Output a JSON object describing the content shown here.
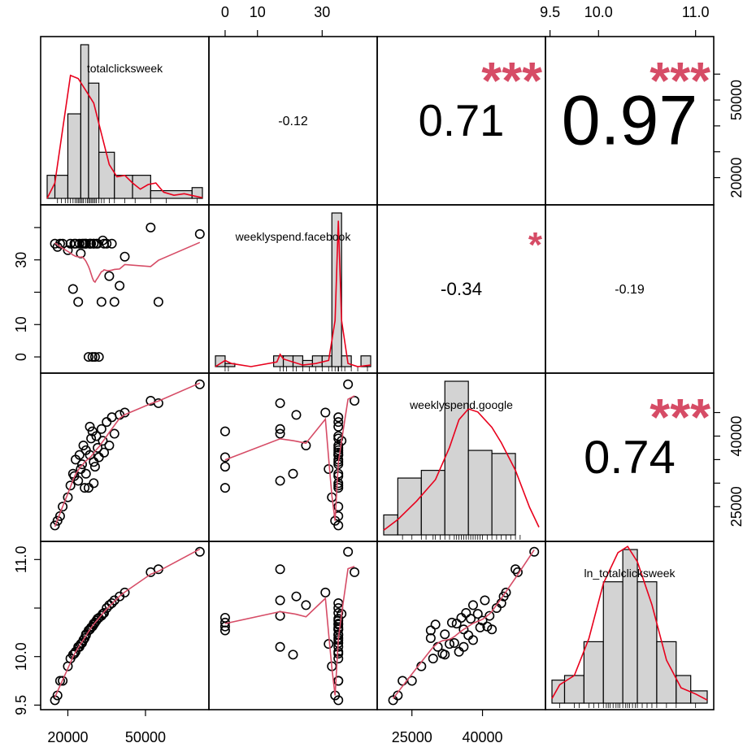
{
  "chart_data": {
    "type": "scatter",
    "variables": [
      "totalclicksweek",
      "weeklyspend.facebook",
      "weeklyspend.google",
      "ln_totalclicksweek"
    ],
    "ranges": [
      [
        12000,
        72000
      ],
      [
        -3,
        45
      ],
      [
        19000,
        52000
      ],
      [
        9.52,
        11.12
      ]
    ],
    "axis_ticks": {
      "bottom_col0": {
        "labels": [
          "20000",
          "50000"
        ],
        "values": [
          20000,
          50000
        ]
      },
      "top_col1": {
        "labels": [
          "0",
          "10",
          "30"
        ],
        "values": [
          0,
          10,
          30
        ]
      },
      "bottom_col2": {
        "labels": [
          "25000",
          "40000"
        ],
        "values": [
          25000,
          40000
        ]
      },
      "top_col3": {
        "labels": [
          "9.5",
          "10.0",
          "11.0"
        ],
        "values": [
          9.5,
          10.0,
          11.0
        ]
      },
      "right_row0": {
        "labels": [
          "20000",
          "50000"
        ],
        "values": [
          20000,
          50000
        ],
        "minor": [
          20000,
          30000,
          40000,
          50000,
          60000
        ]
      },
      "left_row1": {
        "labels": [
          "0",
          "10",
          "30"
        ],
        "values": [
          0,
          10,
          30
        ],
        "minor": [
          0,
          10,
          20,
          30,
          40
        ]
      },
      "right_row2": {
        "labels": [
          "25000",
          "40000"
        ],
        "values": [
          25000,
          40000
        ],
        "minor": [
          25000,
          30000,
          35000,
          40000,
          45000
        ]
      },
      "left_row3": {
        "labels": [
          "9.5",
          "10.0",
          "11.0"
        ],
        "values": [
          9.5,
          10.0,
          11.0
        ],
        "minor": [
          9.5,
          10.0,
          10.5,
          11.0
        ]
      }
    },
    "correlations": [
      {
        "row": 0,
        "col": 1,
        "value": "-0.12",
        "stars": ""
      },
      {
        "row": 0,
        "col": 2,
        "value": "0.71",
        "stars": "***"
      },
      {
        "row": 0,
        "col": 3,
        "value": "0.97",
        "stars": "***"
      },
      {
        "row": 1,
        "col": 2,
        "value": "-0.34",
        "stars": "*"
      },
      {
        "row": 1,
        "col": 3,
        "value": "-0.19",
        "stars": ""
      },
      {
        "row": 2,
        "col": 3,
        "value": "0.74",
        "stars": "***"
      }
    ],
    "histograms": [
      {
        "bins": [
          [
            12000,
            15000,
            0.15
          ],
          [
            15000,
            20000,
            0.15
          ],
          [
            20000,
            25000,
            0.55
          ],
          [
            25000,
            28000,
            1.0
          ],
          [
            28000,
            32000,
            0.75
          ],
          [
            32000,
            38000,
            0.3
          ],
          [
            38000,
            45000,
            0.15
          ],
          [
            45000,
            52000,
            0.15
          ],
          [
            52000,
            68000,
            0.05
          ],
          [
            68000,
            72000,
            0.07
          ]
        ],
        "density": [
          [
            12000,
            0.0
          ],
          [
            15000,
            0.1
          ],
          [
            18000,
            0.45
          ],
          [
            21000,
            0.8
          ],
          [
            24000,
            0.78
          ],
          [
            27000,
            0.7
          ],
          [
            30000,
            0.62
          ],
          [
            33000,
            0.42
          ],
          [
            36000,
            0.22
          ],
          [
            39000,
            0.14
          ],
          [
            42000,
            0.15
          ],
          [
            45000,
            0.1
          ],
          [
            48000,
            0.06
          ],
          [
            51000,
            0.09
          ],
          [
            54000,
            0.1
          ],
          [
            57000,
            0.04
          ],
          [
            61000,
            0.02
          ],
          [
            65000,
            0.03
          ],
          [
            69000,
            0.015
          ],
          [
            72000,
            0.005
          ]
        ],
        "rug": [
          16000,
          17500,
          19000,
          20000,
          21000,
          22000,
          22800,
          23500,
          24000,
          24500,
          25000,
          25500,
          26000,
          26800,
          27500,
          28000,
          28500,
          29000,
          29500,
          30000,
          30500,
          31000,
          32000,
          33000,
          34000,
          36000,
          38000,
          42000,
          46000,
          52000,
          58000,
          70000
        ]
      },
      {
        "bins": [
          [
            -3,
            0,
            0.07
          ],
          [
            0,
            3,
            0.02
          ],
          [
            3,
            15,
            0.0
          ],
          [
            15,
            18,
            0.07
          ],
          [
            18,
            21,
            0.07
          ],
          [
            21,
            24,
            0.07
          ],
          [
            24,
            27,
            0.04
          ],
          [
            27,
            30,
            0.07
          ],
          [
            30,
            33,
            0.07
          ],
          [
            33,
            36,
            1.0
          ],
          [
            36,
            39,
            0.07
          ],
          [
            39,
            42,
            0.0
          ],
          [
            42,
            45,
            0.07
          ]
        ],
        "density": [
          [
            -3,
            0.0
          ],
          [
            0,
            0.04
          ],
          [
            2,
            0.02
          ],
          [
            8,
            0.0
          ],
          [
            16,
            0.03
          ],
          [
            17,
            0.08
          ],
          [
            18,
            0.05
          ],
          [
            24,
            0.01
          ],
          [
            28,
            0.02
          ],
          [
            32,
            0.04
          ],
          [
            34,
            0.3
          ],
          [
            35,
            0.95
          ],
          [
            36,
            0.3
          ],
          [
            38,
            0.02
          ],
          [
            41,
            0.0
          ],
          [
            45,
            0.01
          ]
        ],
        "rug": [
          0,
          1,
          17,
          18,
          19,
          21,
          22,
          24,
          26,
          28,
          30,
          32,
          33,
          34,
          35,
          35,
          35,
          35,
          35,
          35,
          35,
          36,
          37,
          39,
          41,
          44
        ]
      },
      {
        "bins": [
          [
            19000,
            22000,
            0.13
          ],
          [
            22000,
            27000,
            0.37
          ],
          [
            27000,
            32000,
            0.42
          ],
          [
            32000,
            37000,
            1.0
          ],
          [
            37000,
            42000,
            0.55
          ],
          [
            42000,
            47000,
            0.53
          ],
          [
            47000,
            52000,
            0.0
          ]
        ],
        "density": [
          [
            19000,
            0.03
          ],
          [
            22000,
            0.1
          ],
          [
            26000,
            0.22
          ],
          [
            30000,
            0.36
          ],
          [
            33000,
            0.57
          ],
          [
            35000,
            0.75
          ],
          [
            37000,
            0.82
          ],
          [
            39000,
            0.8
          ],
          [
            42000,
            0.7
          ],
          [
            44000,
            0.6
          ],
          [
            47000,
            0.42
          ],
          [
            50000,
            0.18
          ],
          [
            52000,
            0.05
          ]
        ],
        "rug": [
          23000,
          25000,
          27000,
          28000,
          29500,
          30000,
          31000,
          32000,
          33000,
          34000,
          34500,
          35000,
          35500,
          36000,
          36500,
          37000,
          37500,
          38000,
          38500,
          39000,
          39500,
          40000,
          41000,
          42000,
          43000,
          44000,
          45000,
          46000,
          47000,
          48000
        ]
      },
      {
        "bins": [
          [
            9.52,
            9.65,
            0.15
          ],
          [
            9.65,
            9.85,
            0.18
          ],
          [
            9.85,
            10.05,
            0.4
          ],
          [
            10.05,
            10.25,
            0.79
          ],
          [
            10.25,
            10.4,
            1.0
          ],
          [
            10.4,
            10.6,
            0.79
          ],
          [
            10.6,
            10.8,
            0.4
          ],
          [
            10.8,
            10.95,
            0.18
          ],
          [
            10.95,
            11.12,
            0.08
          ]
        ],
        "density": [
          [
            9.52,
            0.03
          ],
          [
            9.6,
            0.12
          ],
          [
            9.75,
            0.18
          ],
          [
            9.9,
            0.42
          ],
          [
            10.05,
            0.78
          ],
          [
            10.2,
            0.98
          ],
          [
            10.3,
            1.02
          ],
          [
            10.4,
            0.92
          ],
          [
            10.55,
            0.64
          ],
          [
            10.7,
            0.28
          ],
          [
            10.85,
            0.1
          ],
          [
            11.0,
            0.06
          ],
          [
            11.12,
            0.02
          ]
        ],
        "rug": [
          9.6,
          9.75,
          9.8,
          9.9,
          9.95,
          10.0,
          10.05,
          10.08,
          10.1,
          10.12,
          10.15,
          10.18,
          10.2,
          10.22,
          10.25,
          10.28,
          10.3,
          10.32,
          10.35,
          10.38,
          10.4,
          10.45,
          10.5,
          10.55,
          10.6,
          10.7,
          10.8,
          11.0
        ]
      }
    ],
    "observations": [
      [
        71000,
        38,
        51000,
        11.08
      ],
      [
        15000,
        35,
        21000,
        9.55
      ],
      [
        16000,
        34,
        22000,
        9.6
      ],
      [
        17000,
        35,
        23000,
        9.75
      ],
      [
        18000,
        35,
        25000,
        9.75
      ],
      [
        20000,
        33,
        27000,
        9.9
      ],
      [
        21000,
        35,
        29500,
        9.98
      ],
      [
        22000,
        21,
        32000,
        10.02
      ],
      [
        23000,
        35,
        35000,
        10.05
      ],
      [
        24000,
        17,
        30500,
        10.1
      ],
      [
        25000,
        32,
        33000,
        10.13
      ],
      [
        26000,
        35,
        38000,
        10.17
      ],
      [
        27000,
        35,
        37000,
        10.22
      ],
      [
        28000,
        0,
        29000,
        10.27
      ],
      [
        28500,
        35,
        36000,
        10.28
      ],
      [
        29000,
        35,
        39500,
        10.3
      ],
      [
        29500,
        0,
        41000,
        10.31
      ],
      [
        30000,
        35,
        30000,
        10.33
      ],
      [
        30500,
        0,
        33500,
        10.35
      ],
      [
        31000,
        35,
        40000,
        10.37
      ],
      [
        31500,
        35,
        37500,
        10.39
      ],
      [
        32000,
        0,
        35500,
        10.4
      ],
      [
        33000,
        17,
        41500,
        10.42
      ],
      [
        33500,
        36,
        39000,
        10.44
      ],
      [
        34000,
        35,
        36500,
        10.45
      ],
      [
        35000,
        35,
        43000,
        10.5
      ],
      [
        36000,
        25,
        38000,
        10.53
      ],
      [
        37000,
        35,
        44000,
        10.55
      ],
      [
        38000,
        17,
        40500,
        10.58
      ],
      [
        40000,
        22,
        44500,
        10.62
      ],
      [
        42000,
        31,
        45000,
        10.66
      ],
      [
        52000,
        40,
        47500,
        10.87
      ],
      [
        55000,
        17,
        47000,
        10.9
      ],
      [
        27000,
        35,
        32000,
        10.23
      ],
      [
        25500,
        35,
        34000,
        10.14
      ],
      [
        24500,
        35,
        36000,
        10.1
      ],
      [
        22500,
        35,
        31500,
        10.03
      ],
      [
        28500,
        35,
        42000,
        10.28
      ],
      [
        30000,
        35,
        34500,
        10.34
      ],
      [
        26500,
        35,
        29000,
        10.19
      ]
    ]
  }
}
